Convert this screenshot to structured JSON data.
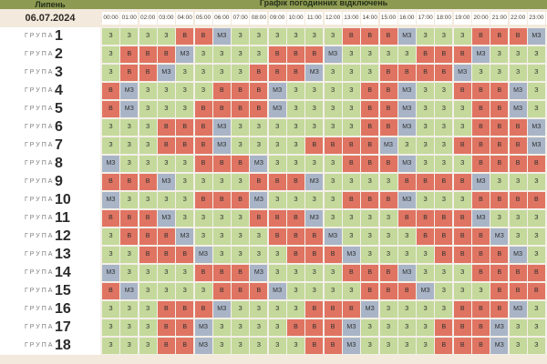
{
  "header": {
    "month": "Липень",
    "title": "Графік погодинних відключень",
    "date": "06.07.2024"
  },
  "hours": [
    "00:00",
    "01:00",
    "02:00",
    "03:00",
    "04:00",
    "05:00",
    "06:00",
    "07:00",
    "08:00",
    "09:00",
    "10:00",
    "11:00",
    "12:00",
    "13:00",
    "14:00",
    "15:00",
    "16:00",
    "17:00",
    "18:00",
    "19:00",
    "20:00",
    "21:00",
    "22:00",
    "23:00",
    "00:00"
  ],
  "group_label": "ГРУПА",
  "legend_codes": {
    "on": "З",
    "off": "В",
    "maybe": "МЗ"
  },
  "colors": {
    "on": "#c4d99b",
    "off": "#e07462",
    "maybe": "#a9b5c7"
  },
  "groups": [
    {
      "num": "1",
      "cells": [
        "З",
        "З",
        "З",
        "З",
        "В",
        "В",
        "МЗ",
        "З",
        "З",
        "З",
        "З",
        "З",
        "З",
        "В",
        "В",
        "В",
        "МЗ",
        "З",
        "З",
        "З",
        "В",
        "В",
        "В",
        "МЗ"
      ]
    },
    {
      "num": "2",
      "cells": [
        "З",
        "В",
        "В",
        "В",
        "МЗ",
        "З",
        "З",
        "З",
        "З",
        "В",
        "В",
        "В",
        "МЗ",
        "З",
        "З",
        "З",
        "З",
        "В",
        "В",
        "В",
        "МЗ",
        "З",
        "З",
        "З"
      ]
    },
    {
      "num": "3",
      "cells": [
        "З",
        "В",
        "В",
        "МЗ",
        "З",
        "З",
        "З",
        "З",
        "В",
        "В",
        "В",
        "МЗ",
        "З",
        "З",
        "З",
        "В",
        "В",
        "В",
        "В",
        "МЗ",
        "З",
        "З",
        "З",
        "З"
      ]
    },
    {
      "num": "4",
      "cells": [
        "В",
        "МЗ",
        "З",
        "З",
        "З",
        "З",
        "В",
        "В",
        "В",
        "МЗ",
        "З",
        "З",
        "З",
        "З",
        "В",
        "В",
        "МЗ",
        "З",
        "З",
        "В",
        "В",
        "В",
        "МЗ",
        "З"
      ]
    },
    {
      "num": "5",
      "cells": [
        "В",
        "МЗ",
        "З",
        "З",
        "З",
        "В",
        "В",
        "В",
        "В",
        "МЗ",
        "З",
        "З",
        "З",
        "З",
        "В",
        "В",
        "МЗ",
        "З",
        "З",
        "З",
        "В",
        "В",
        "МЗ",
        "З"
      ]
    },
    {
      "num": "6",
      "cells": [
        "З",
        "З",
        "З",
        "В",
        "В",
        "В",
        "МЗ",
        "З",
        "З",
        "З",
        "З",
        "З",
        "З",
        "З",
        "В",
        "В",
        "МЗ",
        "З",
        "З",
        "З",
        "В",
        "В",
        "В",
        "МЗ"
      ]
    },
    {
      "num": "7",
      "cells": [
        "З",
        "З",
        "З",
        "В",
        "В",
        "В",
        "МЗ",
        "З",
        "З",
        "З",
        "З",
        "В",
        "В",
        "В",
        "В",
        "МЗ",
        "З",
        "З",
        "З",
        "В",
        "В",
        "В",
        "В",
        "МЗ"
      ]
    },
    {
      "num": "8",
      "cells": [
        "МЗ",
        "З",
        "З",
        "З",
        "З",
        "В",
        "В",
        "В",
        "МЗ",
        "З",
        "З",
        "З",
        "З",
        "В",
        "В",
        "В",
        "МЗ",
        "З",
        "З",
        "З",
        "В",
        "В",
        "В",
        "В"
      ]
    },
    {
      "num": "9",
      "cells": [
        "В",
        "В",
        "В",
        "МЗ",
        "З",
        "З",
        "З",
        "З",
        "В",
        "В",
        "В",
        "МЗ",
        "З",
        "З",
        "З",
        "З",
        "В",
        "В",
        "В",
        "В",
        "МЗ",
        "З",
        "З",
        "З"
      ]
    },
    {
      "num": "10",
      "cells": [
        "МЗ",
        "З",
        "З",
        "З",
        "З",
        "В",
        "В",
        "В",
        "МЗ",
        "З",
        "З",
        "З",
        "З",
        "В",
        "В",
        "В",
        "МЗ",
        "З",
        "З",
        "З",
        "В",
        "В",
        "В",
        "В"
      ]
    },
    {
      "num": "11",
      "cells": [
        "В",
        "В",
        "В",
        "МЗ",
        "З",
        "З",
        "З",
        "З",
        "В",
        "В",
        "В",
        "МЗ",
        "З",
        "З",
        "З",
        "З",
        "В",
        "В",
        "В",
        "В",
        "МЗ",
        "З",
        "З",
        "З"
      ]
    },
    {
      "num": "12",
      "cells": [
        "З",
        "В",
        "В",
        "В",
        "МЗ",
        "З",
        "З",
        "З",
        "З",
        "В",
        "В",
        "В",
        "МЗ",
        "З",
        "З",
        "З",
        "З",
        "В",
        "В",
        "В",
        "В",
        "МЗ",
        "З",
        "З"
      ]
    },
    {
      "num": "13",
      "cells": [
        "З",
        "З",
        "В",
        "В",
        "В",
        "МЗ",
        "З",
        "З",
        "З",
        "З",
        "В",
        "В",
        "В",
        "МЗ",
        "З",
        "З",
        "З",
        "З",
        "В",
        "В",
        "В",
        "В",
        "МЗ",
        "З"
      ]
    },
    {
      "num": "14",
      "cells": [
        "МЗ",
        "З",
        "З",
        "З",
        "З",
        "В",
        "В",
        "В",
        "МЗ",
        "З",
        "З",
        "З",
        "З",
        "В",
        "В",
        "В",
        "МЗ",
        "З",
        "З",
        "З",
        "В",
        "В",
        "В",
        "В"
      ]
    },
    {
      "num": "15",
      "cells": [
        "В",
        "МЗ",
        "З",
        "З",
        "З",
        "З",
        "В",
        "В",
        "В",
        "МЗ",
        "З",
        "З",
        "З",
        "З",
        "В",
        "В",
        "В",
        "МЗ",
        "З",
        "З",
        "З",
        "В",
        "В",
        "В"
      ]
    },
    {
      "num": "16",
      "cells": [
        "З",
        "З",
        "З",
        "В",
        "В",
        "В",
        "МЗ",
        "З",
        "З",
        "З",
        "З",
        "В",
        "В",
        "В",
        "МЗ",
        "З",
        "З",
        "З",
        "З",
        "В",
        "В",
        "В",
        "МЗ",
        "З"
      ]
    },
    {
      "num": "17",
      "cells": [
        "З",
        "З",
        "З",
        "В",
        "В",
        "МЗ",
        "З",
        "З",
        "З",
        "З",
        "В",
        "В",
        "В",
        "МЗ",
        "З",
        "З",
        "З",
        "З",
        "В",
        "В",
        "В",
        "МЗ",
        "З",
        "З"
      ]
    },
    {
      "num": "18",
      "cells": [
        "З",
        "З",
        "З",
        "В",
        "В",
        "МЗ",
        "З",
        "З",
        "З",
        "З",
        "З",
        "В",
        "В",
        "МЗ",
        "З",
        "З",
        "З",
        "З",
        "В",
        "В",
        "В",
        "МЗ",
        "З",
        "З"
      ]
    }
  ]
}
